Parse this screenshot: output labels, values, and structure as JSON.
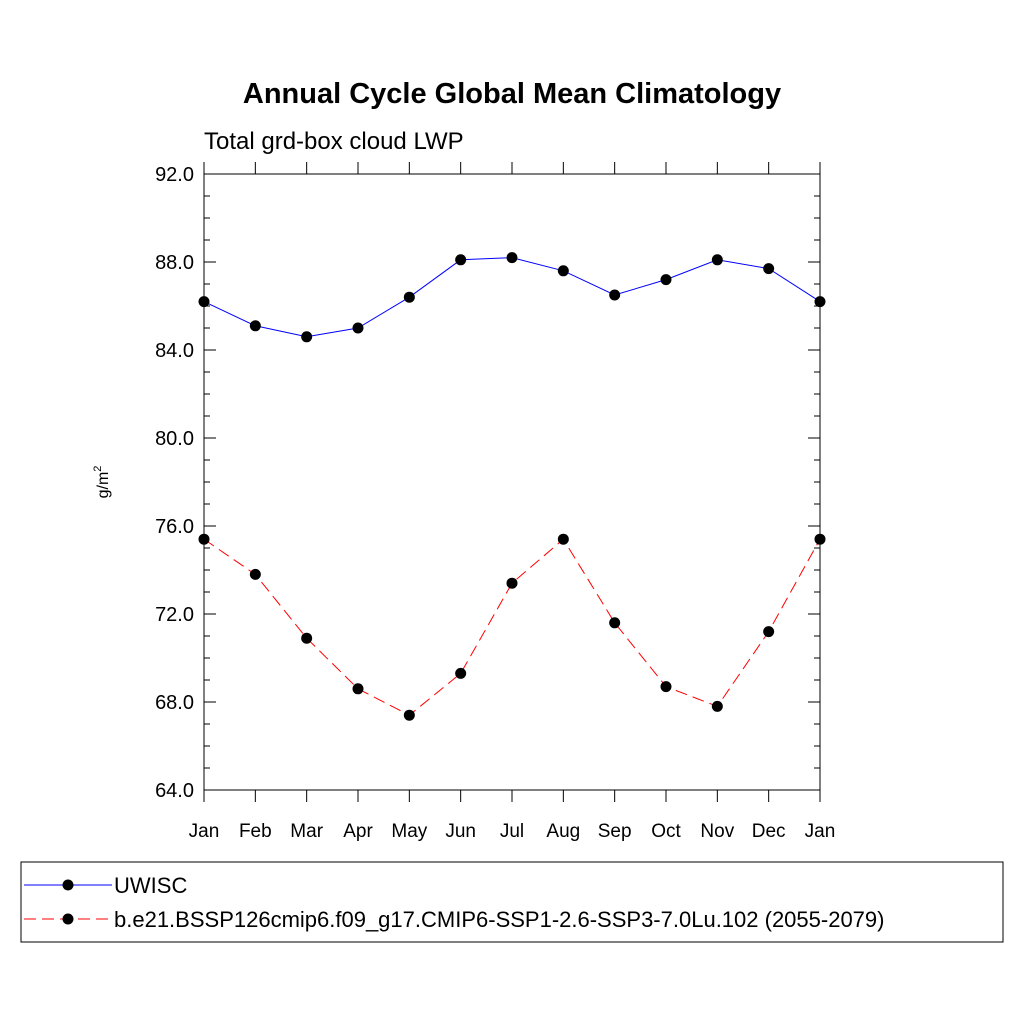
{
  "chart_data": {
    "type": "line",
    "title": "Annual Cycle Global Mean Climatology",
    "subtitle": "Total grd-box cloud LWP",
    "ylabel": "g/m",
    "ylabel_superscript": "2",
    "ylim": [
      64.0,
      92.0
    ],
    "yticks": [
      "64.0",
      "68.0",
      "72.0",
      "76.0",
      "80.0",
      "84.0",
      "88.0",
      "92.0"
    ],
    "categories": [
      "Jan",
      "Feb",
      "Mar",
      "Apr",
      "May",
      "Jun",
      "Jul",
      "Aug",
      "Sep",
      "Oct",
      "Nov",
      "Dec",
      "Jan"
    ],
    "grid": false,
    "legend_position": "bottom",
    "series": [
      {
        "name": "UWISC",
        "color": "#0000ff",
        "line_style": "solid",
        "marker": "filled-circle",
        "values": [
          86.2,
          85.1,
          84.6,
          85.0,
          86.4,
          88.1,
          88.2,
          87.6,
          86.5,
          87.2,
          88.1,
          87.7,
          86.2
        ]
      },
      {
        "name": "b.e21.BSSP126cmip6.f09_g17.CMIP6-SSP1-2.6-SSP3-7.0Lu.102 (2055-2079)",
        "color": "#ff0000",
        "line_style": "dashed",
        "marker": "filled-circle",
        "values": [
          75.4,
          73.8,
          70.9,
          68.6,
          67.4,
          69.3,
          73.4,
          75.4,
          71.6,
          68.7,
          67.8,
          71.2,
          75.4
        ]
      }
    ]
  }
}
